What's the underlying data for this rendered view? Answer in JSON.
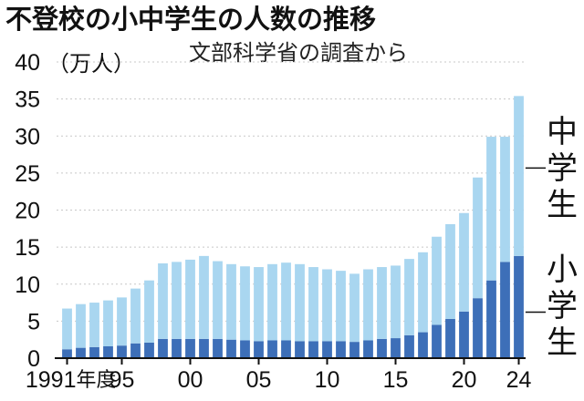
{
  "chart_data": {
    "type": "bar",
    "stacked": true,
    "title": "不登校の小中学生の人数の推移",
    "subtitle": "文部科学省の調査から",
    "yunit": "（万人）",
    "ylim": [
      0,
      40
    ],
    "yticks": [
      "0",
      "5",
      "10",
      "15",
      "20",
      "25",
      "30",
      "35",
      "40"
    ],
    "categories": [
      "1991",
      "1992",
      "1993",
      "1994",
      "1995",
      "1996",
      "1997",
      "1998",
      "1999",
      "2000",
      "2001",
      "2002",
      "2003",
      "2004",
      "2005",
      "2006",
      "2007",
      "2008",
      "2009",
      "2010",
      "2011",
      "2012",
      "2013",
      "2014",
      "2015",
      "2016",
      "2017",
      "2018",
      "2019",
      "2020",
      "2021",
      "2022",
      "2023",
      "2024"
    ],
    "xtick_labels": [
      {
        "index": 0,
        "text": "1991",
        "suffix": "年度"
      },
      {
        "index": 4,
        "text": "95"
      },
      {
        "index": 9,
        "text": "00"
      },
      {
        "index": 14,
        "text": "05"
      },
      {
        "index": 19,
        "text": "10"
      },
      {
        "index": 24,
        "text": "15"
      },
      {
        "index": 29,
        "text": "20"
      },
      {
        "index": 33,
        "text": "24"
      }
    ],
    "series": [
      {
        "name": "小学生",
        "label_chars": [
          "小",
          "学",
          "生"
        ],
        "color": "#3d6fb8",
        "values": [
          1.2,
          1.4,
          1.5,
          1.6,
          1.7,
          2.0,
          2.1,
          2.6,
          2.6,
          2.6,
          2.6,
          2.6,
          2.5,
          2.4,
          2.3,
          2.4,
          2.4,
          2.3,
          2.3,
          2.3,
          2.3,
          2.2,
          2.4,
          2.6,
          2.7,
          3.1,
          3.5,
          4.5,
          5.3,
          6.3,
          8.1,
          10.5,
          13.0,
          13.8
        ]
      },
      {
        "name": "中学生",
        "label_chars": [
          "中",
          "学",
          "生"
        ],
        "color": "#a9d6f0",
        "values": [
          5.5,
          5.9,
          6.0,
          6.2,
          6.5,
          7.4,
          8.4,
          10.2,
          10.4,
          10.7,
          11.2,
          10.5,
          10.2,
          10.0,
          10.0,
          10.3,
          10.5,
          10.4,
          10.0,
          9.7,
          9.5,
          9.2,
          9.6,
          9.7,
          9.8,
          10.3,
          10.8,
          11.9,
          12.8,
          13.3,
          16.3,
          19.4,
          16.9,
          21.6
        ]
      }
    ]
  }
}
